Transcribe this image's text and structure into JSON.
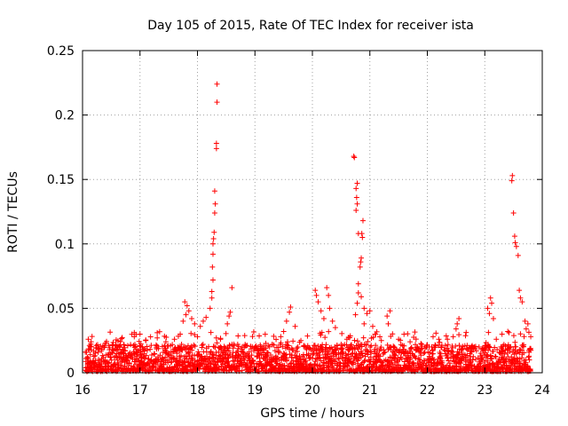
{
  "chart_data": {
    "type": "scatter",
    "title": "Day 105 of 2015, Rate Of TEC Index for receiver ista",
    "xlabel": "GPS time / hours",
    "ylabel": "ROTI / TECUs",
    "xlim": [
      16,
      24
    ],
    "ylim": [
      0,
      0.25
    ],
    "x_ticks": [
      "16",
      "17",
      "18",
      "19",
      "20",
      "21",
      "22",
      "23",
      "24"
    ],
    "y_ticks": [
      "0",
      "0.05",
      "0.1",
      "0.15",
      "0.2",
      "0.25"
    ],
    "grid": true,
    "marker": "plus",
    "color": "#ff0000",
    "series": [
      {
        "name": "ROTI",
        "points": [
          [
            18.34,
            0.224
          ],
          [
            18.34,
            0.21
          ],
          [
            18.33,
            0.178
          ],
          [
            18.33,
            0.174
          ],
          [
            18.3,
            0.141
          ],
          [
            18.31,
            0.131
          ],
          [
            18.3,
            0.124
          ],
          [
            18.29,
            0.109
          ],
          [
            18.28,
            0.104
          ],
          [
            18.27,
            0.1
          ],
          [
            18.27,
            0.092
          ],
          [
            18.26,
            0.082
          ],
          [
            18.27,
            0.072
          ],
          [
            18.25,
            0.063
          ],
          [
            18.25,
            0.058
          ],
          [
            18.22,
            0.05
          ],
          [
            18.6,
            0.066
          ],
          [
            18.57,
            0.047
          ],
          [
            18.55,
            0.044
          ],
          [
            18.52,
            0.038
          ],
          [
            17.78,
            0.055
          ],
          [
            17.82,
            0.052
          ],
          [
            17.85,
            0.048
          ],
          [
            17.8,
            0.045
          ],
          [
            17.9,
            0.042
          ],
          [
            17.75,
            0.04
          ],
          [
            17.95,
            0.038
          ],
          [
            18.05,
            0.036
          ],
          [
            18.1,
            0.04
          ],
          [
            18.15,
            0.043
          ],
          [
            20.72,
            0.168
          ],
          [
            20.73,
            0.167
          ],
          [
            20.78,
            0.147
          ],
          [
            20.76,
            0.143
          ],
          [
            20.77,
            0.136
          ],
          [
            20.78,
            0.131
          ],
          [
            20.76,
            0.126
          ],
          [
            20.88,
            0.118
          ],
          [
            20.8,
            0.108
          ],
          [
            20.86,
            0.108
          ],
          [
            20.87,
            0.105
          ],
          [
            20.85,
            0.089
          ],
          [
            20.84,
            0.086
          ],
          [
            20.83,
            0.082
          ],
          [
            20.8,
            0.069
          ],
          [
            20.8,
            0.062
          ],
          [
            20.85,
            0.059
          ],
          [
            20.78,
            0.054
          ],
          [
            20.9,
            0.05
          ],
          [
            20.95,
            0.046
          ],
          [
            21.0,
            0.048
          ],
          [
            20.75,
            0.045
          ],
          [
            20.9,
            0.038
          ],
          [
            21.05,
            0.036
          ],
          [
            20.05,
            0.064
          ],
          [
            20.07,
            0.06
          ],
          [
            20.1,
            0.055
          ],
          [
            20.25,
            0.066
          ],
          [
            20.28,
            0.06
          ],
          [
            20.15,
            0.048
          ],
          [
            20.3,
            0.05
          ],
          [
            20.35,
            0.04
          ],
          [
            20.4,
            0.035
          ],
          [
            20.2,
            0.042
          ],
          [
            21.35,
            0.048
          ],
          [
            21.3,
            0.044
          ],
          [
            21.32,
            0.038
          ],
          [
            19.62,
            0.051
          ],
          [
            19.6,
            0.047
          ],
          [
            19.55,
            0.04
          ],
          [
            19.7,
            0.036
          ],
          [
            19.5,
            0.032
          ],
          [
            19.45,
            0.028
          ],
          [
            22.55,
            0.042
          ],
          [
            22.52,
            0.038
          ],
          [
            22.5,
            0.034
          ],
          [
            22.45,
            0.028
          ],
          [
            22.1,
            0.028
          ],
          [
            22.2,
            0.026
          ],
          [
            22.35,
            0.026
          ],
          [
            23.48,
            0.153
          ],
          [
            23.47,
            0.149
          ],
          [
            23.5,
            0.124
          ],
          [
            23.52,
            0.106
          ],
          [
            23.53,
            0.101
          ],
          [
            23.55,
            0.098
          ],
          [
            23.58,
            0.091
          ],
          [
            23.6,
            0.064
          ],
          [
            23.62,
            0.058
          ],
          [
            23.65,
            0.055
          ],
          [
            23.1,
            0.058
          ],
          [
            23.12,
            0.054
          ],
          [
            23.05,
            0.05
          ],
          [
            23.08,
            0.046
          ],
          [
            23.15,
            0.042
          ],
          [
            23.7,
            0.04
          ],
          [
            23.75,
            0.038
          ],
          [
            23.72,
            0.034
          ],
          [
            23.4,
            0.032
          ],
          [
            23.3,
            0.03
          ],
          [
            16.1,
            0.026
          ],
          [
            16.15,
            0.024
          ],
          [
            16.4,
            0.023
          ],
          [
            16.6,
            0.02
          ],
          [
            16.9,
            0.028
          ],
          [
            17.0,
            0.03
          ],
          [
            17.1,
            0.025
          ],
          [
            17.3,
            0.027
          ],
          [
            17.45,
            0.024
          ],
          [
            17.6,
            0.026
          ],
          [
            17.7,
            0.03
          ],
          [
            18.0,
            0.028
          ],
          [
            18.4,
            0.026
          ],
          [
            18.7,
            0.022
          ],
          [
            18.9,
            0.016
          ],
          [
            19.1,
            0.018
          ],
          [
            19.3,
            0.022
          ],
          [
            19.8,
            0.025
          ],
          [
            19.9,
            0.018
          ],
          [
            20.5,
            0.022
          ],
          [
            20.6,
            0.026
          ],
          [
            21.1,
            0.03
          ],
          [
            21.2,
            0.025
          ],
          [
            21.5,
            0.026
          ],
          [
            21.7,
            0.024
          ],
          [
            21.9,
            0.022
          ],
          [
            22.7,
            0.018
          ],
          [
            22.9,
            0.02
          ],
          [
            23.2,
            0.026
          ],
          [
            23.8,
            0.028
          ]
        ],
        "baseline_band": {
          "x_range": [
            16.05,
            23.8
          ],
          "y_range": [
            0.001,
            0.022
          ],
          "density": "dense"
        }
      }
    ]
  }
}
